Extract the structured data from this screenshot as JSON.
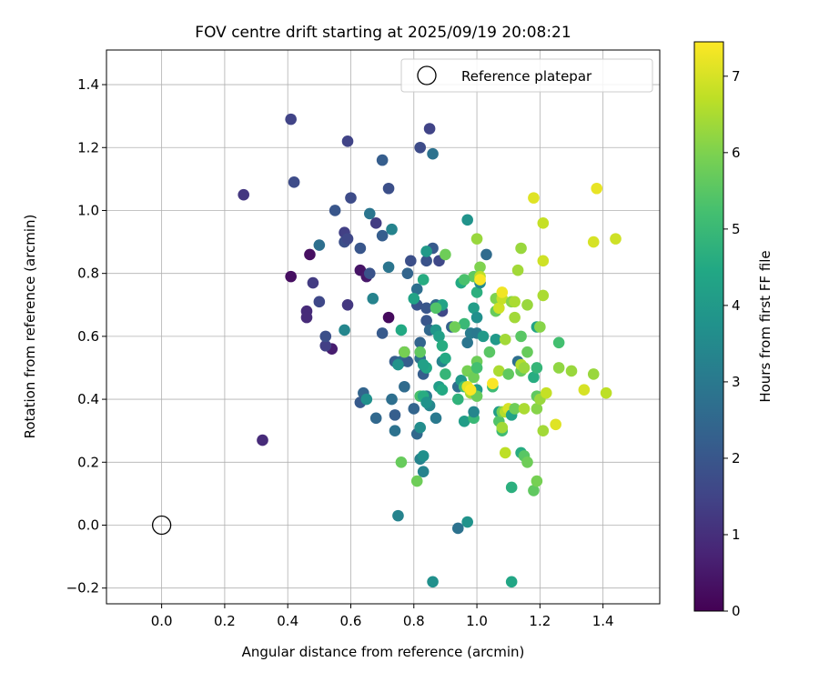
{
  "chart_data": {
    "type": "scatter",
    "title": "FOV centre drift starting at 2025/09/19 20:08:21",
    "xlabel": "Angular distance from reference (arcmin)",
    "ylabel": "Rotation from reference (arcmin)",
    "xlim": [
      -0.175,
      1.58
    ],
    "ylim": [
      -0.25,
      1.51
    ],
    "xticks": [
      0.0,
      0.2,
      0.4,
      0.6,
      0.8,
      1.0,
      1.2,
      1.4
    ],
    "xtick_labels": [
      "0.0",
      "0.2",
      "0.4",
      "0.6",
      "0.8",
      "1.0",
      "1.2",
      "1.4"
    ],
    "yticks": [
      -0.2,
      0.0,
      0.2,
      0.4,
      0.6,
      0.8,
      1.0,
      1.2,
      1.4
    ],
    "ytick_labels": [
      "−0.2",
      "0.0",
      "0.2",
      "0.4",
      "0.6",
      "0.8",
      "1.0",
      "1.2",
      "1.4"
    ],
    "grid": true,
    "legend": {
      "position": "top-right",
      "entries": [
        "Reference platepar"
      ]
    },
    "reference_point": {
      "x": 0.0,
      "y": 0.0,
      "label": "Reference platepar"
    },
    "colorbar": {
      "label": "Hours from first FF file",
      "range": [
        0,
        7.45
      ],
      "ticks": [
        0,
        1,
        2,
        3,
        4,
        5,
        6,
        7
      ],
      "tick_labels": [
        "0",
        "1",
        "2",
        "3",
        "4",
        "5",
        "6",
        "7"
      ],
      "colormap": "viridis"
    },
    "points": [
      {
        "x": 0.47,
        "y": 0.86,
        "c": 0.3
      },
      {
        "x": 0.41,
        "y": 0.79,
        "c": 0.3
      },
      {
        "x": 0.72,
        "y": 0.66,
        "c": 0.2
      },
      {
        "x": 0.54,
        "y": 0.56,
        "c": 0.6
      },
      {
        "x": 0.63,
        "y": 0.81,
        "c": 0.4
      },
      {
        "x": 0.65,
        "y": 0.79,
        "c": 0.5
      },
      {
        "x": 0.46,
        "y": 0.68,
        "c": 0.9
      },
      {
        "x": 0.46,
        "y": 0.66,
        "c": 0.9
      },
      {
        "x": 0.32,
        "y": 0.27,
        "c": 0.9
      },
      {
        "x": 0.26,
        "y": 1.05,
        "c": 1.2
      },
      {
        "x": 0.41,
        "y": 1.29,
        "c": 1.5
      },
      {
        "x": 0.42,
        "y": 1.09,
        "c": 1.7
      },
      {
        "x": 0.59,
        "y": 1.22,
        "c": 1.5
      },
      {
        "x": 0.85,
        "y": 1.26,
        "c": 1.5
      },
      {
        "x": 0.82,
        "y": 1.2,
        "c": 1.7
      },
      {
        "x": 0.48,
        "y": 0.77,
        "c": 1.3
      },
      {
        "x": 0.59,
        "y": 0.7,
        "c": 1.2
      },
      {
        "x": 0.52,
        "y": 0.57,
        "c": 1.4
      },
      {
        "x": 0.5,
        "y": 0.71,
        "c": 1.6
      },
      {
        "x": 0.52,
        "y": 0.6,
        "c": 1.8
      },
      {
        "x": 0.58,
        "y": 0.93,
        "c": 1.4
      },
      {
        "x": 0.6,
        "y": 1.04,
        "c": 1.7
      },
      {
        "x": 0.55,
        "y": 1.0,
        "c": 2.0
      },
      {
        "x": 0.58,
        "y": 0.9,
        "c": 1.8
      },
      {
        "x": 0.59,
        "y": 0.91,
        "c": 1.6
      },
      {
        "x": 0.63,
        "y": 0.88,
        "c": 2.0
      },
      {
        "x": 0.66,
        "y": 0.8,
        "c": 1.9
      },
      {
        "x": 0.68,
        "y": 0.96,
        "c": 1.3
      },
      {
        "x": 0.7,
        "y": 0.92,
        "c": 2.2
      },
      {
        "x": 0.72,
        "y": 1.07,
        "c": 1.8
      },
      {
        "x": 0.7,
        "y": 1.16,
        "c": 2.2
      },
      {
        "x": 0.5,
        "y": 0.89,
        "c": 2.7
      },
      {
        "x": 0.66,
        "y": 0.99,
        "c": 2.9
      },
      {
        "x": 0.73,
        "y": 0.94,
        "c": 3.3
      },
      {
        "x": 0.7,
        "y": 0.61,
        "c": 2.1
      },
      {
        "x": 0.72,
        "y": 0.82,
        "c": 2.9
      },
      {
        "x": 0.67,
        "y": 0.72,
        "c": 3.3
      },
      {
        "x": 0.78,
        "y": 0.8,
        "c": 2.4
      },
      {
        "x": 0.79,
        "y": 0.84,
        "c": 1.8
      },
      {
        "x": 0.81,
        "y": 0.7,
        "c": 1.9
      },
      {
        "x": 0.81,
        "y": 0.75,
        "c": 2.7
      },
      {
        "x": 0.84,
        "y": 0.69,
        "c": 2.0
      },
      {
        "x": 0.84,
        "y": 0.65,
        "c": 2.0
      },
      {
        "x": 0.84,
        "y": 0.84,
        "c": 1.9
      },
      {
        "x": 0.86,
        "y": 0.88,
        "c": 2.1
      },
      {
        "x": 0.86,
        "y": 1.18,
        "c": 2.8
      },
      {
        "x": 0.88,
        "y": 0.84,
        "c": 1.6
      },
      {
        "x": 0.89,
        "y": 0.68,
        "c": 1.6
      },
      {
        "x": 0.87,
        "y": 0.7,
        "c": 2.6
      },
      {
        "x": 0.82,
        "y": 0.58,
        "c": 2.4
      },
      {
        "x": 0.85,
        "y": 0.62,
        "c": 2.5
      },
      {
        "x": 0.77,
        "y": 0.55,
        "c": 1.6
      },
      {
        "x": 0.74,
        "y": 0.52,
        "c": 2.2
      },
      {
        "x": 0.76,
        "y": 0.52,
        "c": 2.6
      },
      {
        "x": 0.78,
        "y": 0.52,
        "c": 2.2
      },
      {
        "x": 0.83,
        "y": 0.48,
        "c": 2.2
      },
      {
        "x": 0.82,
        "y": 0.53,
        "c": 2.8
      },
      {
        "x": 0.8,
        "y": 0.37,
        "c": 2.4
      },
      {
        "x": 0.77,
        "y": 0.44,
        "c": 2.6
      },
      {
        "x": 0.73,
        "y": 0.4,
        "c": 2.7
      },
      {
        "x": 0.64,
        "y": 0.42,
        "c": 2.4
      },
      {
        "x": 0.63,
        "y": 0.39,
        "c": 2.1
      },
      {
        "x": 0.68,
        "y": 0.34,
        "c": 2.5
      },
      {
        "x": 0.74,
        "y": 0.35,
        "c": 2.2
      },
      {
        "x": 0.74,
        "y": 0.3,
        "c": 2.8
      },
      {
        "x": 0.81,
        "y": 0.29,
        "c": 2.5
      },
      {
        "x": 0.82,
        "y": 0.21,
        "c": 3.3
      },
      {
        "x": 0.83,
        "y": 0.17,
        "c": 3.3
      },
      {
        "x": 0.83,
        "y": 0.22,
        "c": 3.7
      },
      {
        "x": 0.84,
        "y": 0.41,
        "c": 3.1
      },
      {
        "x": 0.85,
        "y": 0.38,
        "c": 3.4
      },
      {
        "x": 0.87,
        "y": 0.34,
        "c": 3.0
      },
      {
        "x": 0.82,
        "y": 0.31,
        "c": 3.6
      },
      {
        "x": 0.75,
        "y": 0.03,
        "c": 3.3
      },
      {
        "x": 0.86,
        "y": -0.18,
        "c": 3.7
      },
      {
        "x": 0.94,
        "y": -0.01,
        "c": 2.8
      },
      {
        "x": 0.97,
        "y": 0.01,
        "c": 3.8
      },
      {
        "x": 0.65,
        "y": 0.4,
        "c": 3.7
      },
      {
        "x": 0.58,
        "y": 0.62,
        "c": 3.4
      },
      {
        "x": 0.76,
        "y": 0.62,
        "c": 4.5
      },
      {
        "x": 0.75,
        "y": 0.51,
        "c": 3.8
      },
      {
        "x": 0.84,
        "y": 0.5,
        "c": 4.4
      },
      {
        "x": 0.83,
        "y": 0.51,
        "c": 4.2
      },
      {
        "x": 0.83,
        "y": 0.78,
        "c": 4.6
      },
      {
        "x": 0.84,
        "y": 0.87,
        "c": 4.0
      },
      {
        "x": 0.8,
        "y": 0.72,
        "c": 4.3
      },
      {
        "x": 0.87,
        "y": 0.62,
        "c": 3.9
      },
      {
        "x": 0.88,
        "y": 0.6,
        "c": 4.2
      },
      {
        "x": 0.89,
        "y": 0.57,
        "c": 4.6
      },
      {
        "x": 0.92,
        "y": 0.63,
        "c": 2.3
      },
      {
        "x": 0.89,
        "y": 0.7,
        "c": 4.3
      },
      {
        "x": 0.89,
        "y": 0.52,
        "c": 3.3
      },
      {
        "x": 0.9,
        "y": 0.53,
        "c": 4.5
      },
      {
        "x": 0.9,
        "y": 0.48,
        "c": 4.9
      },
      {
        "x": 0.88,
        "y": 0.44,
        "c": 4.1
      },
      {
        "x": 0.89,
        "y": 0.43,
        "c": 4.5
      },
      {
        "x": 0.94,
        "y": 0.44,
        "c": 2.7
      },
      {
        "x": 0.95,
        "y": 0.46,
        "c": 4.0
      },
      {
        "x": 0.96,
        "y": 0.44,
        "c": 5.2
      },
      {
        "x": 0.94,
        "y": 0.4,
        "c": 4.8
      },
      {
        "x": 0.96,
        "y": 0.33,
        "c": 4.1
      },
      {
        "x": 0.99,
        "y": 0.34,
        "c": 5.0
      },
      {
        "x": 0.99,
        "y": 0.36,
        "c": 3.4
      },
      {
        "x": 0.97,
        "y": 0.58,
        "c": 2.9
      },
      {
        "x": 0.96,
        "y": 0.64,
        "c": 5.0
      },
      {
        "x": 0.98,
        "y": 0.61,
        "c": 3.1
      },
      {
        "x": 0.99,
        "y": 0.69,
        "c": 4.1
      },
      {
        "x": 1.0,
        "y": 0.61,
        "c": 3.0
      },
      {
        "x": 1.0,
        "y": 0.66,
        "c": 3.7
      },
      {
        "x": 1.02,
        "y": 0.6,
        "c": 4.0
      },
      {
        "x": 1.0,
        "y": 0.74,
        "c": 4.7
      },
      {
        "x": 1.01,
        "y": 0.77,
        "c": 3.5
      },
      {
        "x": 0.99,
        "y": 0.79,
        "c": 5.6
      },
      {
        "x": 1.03,
        "y": 0.86,
        "c": 2.6
      },
      {
        "x": 0.97,
        "y": 0.97,
        "c": 3.8
      },
      {
        "x": 0.95,
        "y": 0.77,
        "c": 4.5
      },
      {
        "x": 0.96,
        "y": 0.78,
        "c": 5.3
      },
      {
        "x": 0.93,
        "y": 0.63,
        "c": 5.8
      },
      {
        "x": 0.9,
        "y": 0.86,
        "c": 5.8
      },
      {
        "x": 0.82,
        "y": 0.55,
        "c": 5.6
      },
      {
        "x": 0.77,
        "y": 0.55,
        "c": 5.9
      },
      {
        "x": 0.76,
        "y": 0.2,
        "c": 5.7
      },
      {
        "x": 0.81,
        "y": 0.14,
        "c": 5.8
      },
      {
        "x": 0.82,
        "y": 0.41,
        "c": 5.3
      },
      {
        "x": 0.83,
        "y": 0.41,
        "c": 4.6
      },
      {
        "x": 0.87,
        "y": 0.69,
        "c": 5.4
      },
      {
        "x": 0.97,
        "y": 0.49,
        "c": 5.9
      },
      {
        "x": 0.98,
        "y": 0.42,
        "c": 6.4
      },
      {
        "x": 0.99,
        "y": 0.47,
        "c": 5.8
      },
      {
        "x": 1.0,
        "y": 0.52,
        "c": 5.8
      },
      {
        "x": 1.0,
        "y": 0.5,
        "c": 5.2
      },
      {
        "x": 1.0,
        "y": 0.91,
        "c": 6.3
      },
      {
        "x": 1.01,
        "y": 0.82,
        "c": 6.0
      },
      {
        "x": 1.01,
        "y": 0.79,
        "c": 6.7
      },
      {
        "x": 1.04,
        "y": 0.55,
        "c": 5.5
      },
      {
        "x": 1.05,
        "y": 0.44,
        "c": 5.1
      },
      {
        "x": 1.06,
        "y": 0.59,
        "c": 4.0
      },
      {
        "x": 1.06,
        "y": 0.68,
        "c": 5.7
      },
      {
        "x": 1.06,
        "y": 0.72,
        "c": 6.0
      },
      {
        "x": 1.07,
        "y": 0.69,
        "c": 6.9
      },
      {
        "x": 1.08,
        "y": 0.72,
        "c": 6.8
      },
      {
        "x": 1.07,
        "y": 0.49,
        "c": 6.5
      },
      {
        "x": 1.07,
        "y": 0.36,
        "c": 4.1
      },
      {
        "x": 1.07,
        "y": 0.33,
        "c": 5.4
      },
      {
        "x": 1.08,
        "y": 0.36,
        "c": 5.9
      },
      {
        "x": 1.08,
        "y": 0.3,
        "c": 5.1
      },
      {
        "x": 1.08,
        "y": 0.31,
        "c": 6.4
      },
      {
        "x": 1.09,
        "y": 0.36,
        "c": 6.6
      },
      {
        "x": 1.09,
        "y": 0.23,
        "c": 6.7
      },
      {
        "x": 1.1,
        "y": 0.37,
        "c": 7.0
      },
      {
        "x": 1.11,
        "y": 0.35,
        "c": 4.3
      },
      {
        "x": 1.11,
        "y": 0.12,
        "c": 4.7
      },
      {
        "x": 1.12,
        "y": 0.37,
        "c": 5.8
      },
      {
        "x": 1.11,
        "y": -0.18,
        "c": 4.4
      },
      {
        "x": 1.13,
        "y": 0.52,
        "c": 2.7
      },
      {
        "x": 1.14,
        "y": 0.23,
        "c": 4.6
      },
      {
        "x": 1.14,
        "y": 0.49,
        "c": 5.7
      },
      {
        "x": 1.14,
        "y": 0.51,
        "c": 6.6
      },
      {
        "x": 1.15,
        "y": 0.5,
        "c": 6.3
      },
      {
        "x": 1.16,
        "y": 0.55,
        "c": 5.7
      },
      {
        "x": 1.15,
        "y": 0.22,
        "c": 5.5
      },
      {
        "x": 1.16,
        "y": 0.2,
        "c": 5.8
      },
      {
        "x": 1.15,
        "y": 0.37,
        "c": 6.5
      },
      {
        "x": 1.18,
        "y": 0.47,
        "c": 4.6
      },
      {
        "x": 1.19,
        "y": 0.5,
        "c": 4.9
      },
      {
        "x": 1.19,
        "y": 0.41,
        "c": 5.6
      },
      {
        "x": 1.19,
        "y": 0.37,
        "c": 6.1
      },
      {
        "x": 1.2,
        "y": 0.4,
        "c": 6.3
      },
      {
        "x": 1.21,
        "y": 0.3,
        "c": 6.4
      },
      {
        "x": 1.18,
        "y": 0.11,
        "c": 5.6
      },
      {
        "x": 1.19,
        "y": 0.14,
        "c": 5.9
      },
      {
        "x": 1.19,
        "y": 0.63,
        "c": 4.3
      },
      {
        "x": 1.2,
        "y": 0.63,
        "c": 6.1
      },
      {
        "x": 1.21,
        "y": 0.73,
        "c": 6.5
      },
      {
        "x": 1.22,
        "y": 0.42,
        "c": 6.8
      },
      {
        "x": 1.25,
        "y": 0.32,
        "c": 7.1
      },
      {
        "x": 1.26,
        "y": 0.58,
        "c": 5.2
      },
      {
        "x": 1.26,
        "y": 0.5,
        "c": 6.2
      },
      {
        "x": 1.3,
        "y": 0.49,
        "c": 6.3
      },
      {
        "x": 1.34,
        "y": 0.43,
        "c": 7.0
      },
      {
        "x": 1.37,
        "y": 0.48,
        "c": 6.3
      },
      {
        "x": 1.37,
        "y": 0.9,
        "c": 7.0
      },
      {
        "x": 1.38,
        "y": 1.07,
        "c": 7.2
      },
      {
        "x": 1.41,
        "y": 0.42,
        "c": 6.7
      },
      {
        "x": 1.44,
        "y": 0.91,
        "c": 6.9
      },
      {
        "x": 1.21,
        "y": 0.84,
        "c": 6.9
      },
      {
        "x": 1.21,
        "y": 0.96,
        "c": 6.8
      },
      {
        "x": 1.18,
        "y": 1.04,
        "c": 7.1
      },
      {
        "x": 1.14,
        "y": 0.88,
        "c": 6.3
      },
      {
        "x": 1.13,
        "y": 0.81,
        "c": 6.4
      },
      {
        "x": 1.12,
        "y": 0.66,
        "c": 6.4
      },
      {
        "x": 1.11,
        "y": 0.71,
        "c": 6.1
      },
      {
        "x": 1.16,
        "y": 0.7,
        "c": 6.3
      },
      {
        "x": 1.14,
        "y": 0.6,
        "c": 5.5
      },
      {
        "x": 1.12,
        "y": 0.71,
        "c": 6.5
      },
      {
        "x": 1.08,
        "y": 0.74,
        "c": 7.3
      },
      {
        "x": 1.01,
        "y": 0.78,
        "c": 7.4
      },
      {
        "x": 1.05,
        "y": 0.45,
        "c": 7.4
      },
      {
        "x": 1.1,
        "y": 0.48,
        "c": 5.6
      },
      {
        "x": 1.09,
        "y": 0.59,
        "c": 6.4
      },
      {
        "x": 1.0,
        "y": 0.43,
        "c": 4.0
      },
      {
        "x": 1.0,
        "y": 0.41,
        "c": 5.7
      },
      {
        "x": 0.97,
        "y": 0.44,
        "c": 7.2
      },
      {
        "x": 0.98,
        "y": 0.43,
        "c": 7.4
      },
      {
        "x": 0.84,
        "y": 0.39,
        "c": 3.8
      }
    ]
  }
}
